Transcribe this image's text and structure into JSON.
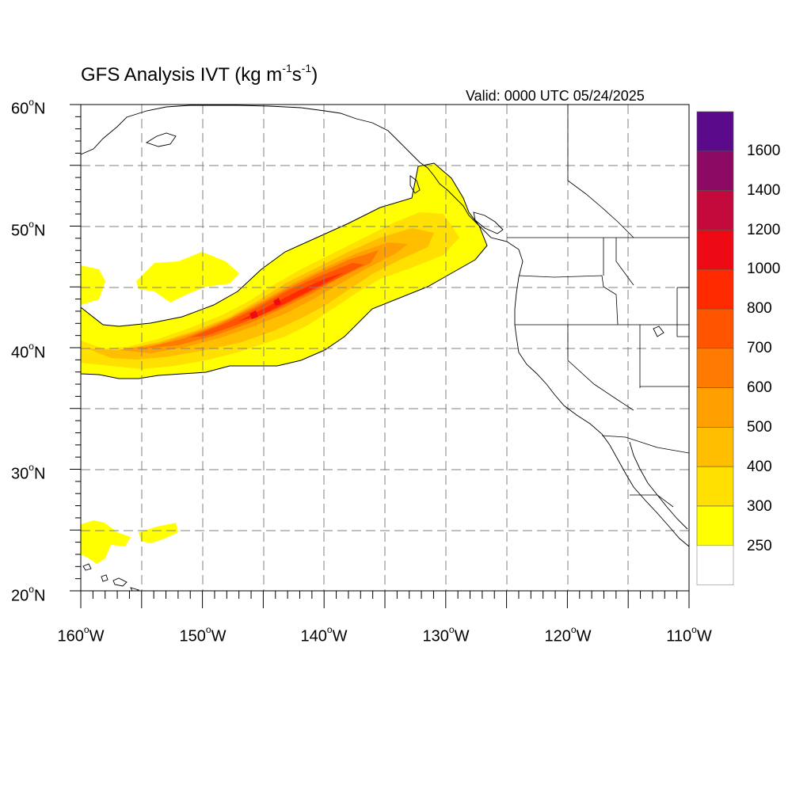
{
  "title": {
    "prefix": "GFS Analysis IVT (kg m",
    "sup1": "-1",
    "middle": "s",
    "sup2": "-1",
    "suffix": ")"
  },
  "valid_label": "Valid: 0000 UTC 05/24/2025",
  "map": {
    "projection": "cylindrical equidistant",
    "lon_range": [
      -160,
      -110
    ],
    "lat_range": [
      20,
      60
    ],
    "grid_lines": "dashed every 5 degrees",
    "lat_ticks": [
      {
        "text": "60",
        "unit": "o",
        "hem": "N"
      },
      {
        "text": "50",
        "unit": "o",
        "hem": "N"
      },
      {
        "text": "40",
        "unit": "o",
        "hem": "N"
      },
      {
        "text": "30",
        "unit": "o",
        "hem": "N"
      },
      {
        "text": "20",
        "unit": "o",
        "hem": "N"
      }
    ],
    "lon_ticks": [
      {
        "text": "160",
        "unit": "o",
        "hem": "W"
      },
      {
        "text": "150",
        "unit": "o",
        "hem": "W"
      },
      {
        "text": "140",
        "unit": "o",
        "hem": "W"
      },
      {
        "text": "130",
        "unit": "o",
        "hem": "W"
      },
      {
        "text": "120",
        "unit": "o",
        "hem": "W"
      },
      {
        "text": "110",
        "unit": "o",
        "hem": "W"
      }
    ],
    "features": [
      "atmospheric river from 160W 40N to British Columbia coast",
      "US West Coast and state boundaries",
      "Baja California"
    ]
  },
  "colorbar": {
    "labels": [
      "1600",
      "1400",
      "1200",
      "1000",
      "800",
      "700",
      "600",
      "500",
      "400",
      "300",
      "250"
    ],
    "colors_top_to_bottom": [
      "#5c0a8c",
      "#8c0a64",
      "#c40a3c",
      "#ee0a14",
      "#ff2a00",
      "#ff5500",
      "#ff7a00",
      "#ffa000",
      "#ffbf00",
      "#ffe000",
      "#ffff00",
      "#ffffff"
    ]
  },
  "ivt_colors": {
    "c250": "#ffff00",
    "c300": "#ffe000",
    "c400": "#ffbf00",
    "c500": "#ffa000",
    "c600": "#ff7a00",
    "c700": "#ff5500",
    "c800": "#ff2a00",
    "c1000": "#ee0a14"
  }
}
